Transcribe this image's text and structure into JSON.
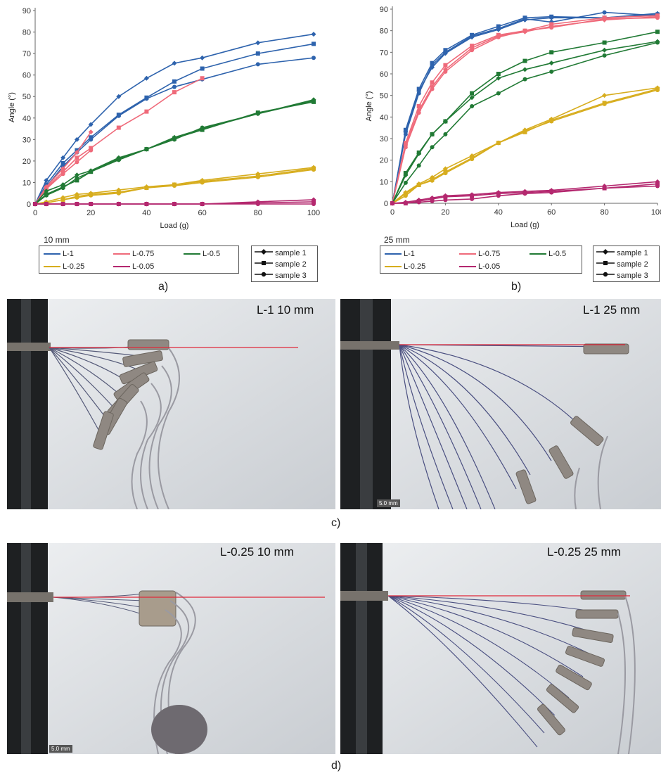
{
  "colors": {
    "L-1": "#2e63ad",
    "L-0.75": "#ef6a7a",
    "L-0.5": "#217a35",
    "L-0.25": "#d7ad1e",
    "L-0.05": "#b4286f",
    "target_line": "#e0283a"
  },
  "legend": {
    "series": [
      "L-1",
      "L-0.75",
      "L-0.5",
      "L-0.25",
      "L-0.05"
    ],
    "markers": [
      {
        "label": "sample 1",
        "marker": "diamond"
      },
      {
        "label": "sample 2",
        "marker": "square"
      },
      {
        "label": "sample 3",
        "marker": "circle"
      }
    ]
  },
  "chart_data": [
    {
      "type": "line",
      "panel": "a)",
      "note": "10 mm",
      "xlabel": "Load (g)",
      "ylabel": "Angle (°)",
      "xlim": [
        0,
        100
      ],
      "ylim": [
        0,
        90
      ],
      "xticks": [
        0,
        20,
        40,
        60,
        80,
        100
      ],
      "yticks": [
        0,
        10,
        20,
        30,
        40,
        50,
        60,
        70,
        80,
        90
      ],
      "grid": false,
      "series": [
        {
          "name": "L-1",
          "sample": "sample 1",
          "marker": "diamond",
          "color": "L-1",
          "x": [
            0,
            4,
            10,
            15,
            20,
            30,
            40,
            50,
            60,
            80,
            100
          ],
          "y": [
            0,
            11,
            21.5,
            30,
            37,
            50,
            58.5,
            65.5,
            68,
            75,
            79
          ]
        },
        {
          "name": "L-1",
          "sample": "sample 2",
          "marker": "square",
          "color": "L-1",
          "x": [
            0,
            4,
            10,
            15,
            20,
            30,
            40,
            50,
            60,
            80,
            100
          ],
          "y": [
            0,
            9,
            19,
            25,
            31,
            41.5,
            49.5,
            57,
            63,
            70,
            74.5
          ]
        },
        {
          "name": "L-1",
          "sample": "sample 3",
          "marker": "circle",
          "color": "L-1",
          "x": [
            0,
            4,
            10,
            15,
            20,
            30,
            40,
            50,
            60,
            80,
            100
          ],
          "y": [
            0,
            8,
            17.5,
            24,
            30,
            41,
            49,
            54.5,
            58,
            65,
            68
          ]
        },
        {
          "name": "L-0.75",
          "sample": "sample 1",
          "marker": "diamond",
          "color": "L-0.75",
          "x": [
            0,
            4,
            10,
            15,
            20
          ],
          "y": [
            0,
            8,
            16.5,
            24,
            33.5
          ]
        },
        {
          "name": "L-0.75",
          "sample": "sample 2",
          "marker": "square",
          "color": "L-0.75",
          "x": [
            0,
            4,
            10,
            15,
            20,
            30,
            40,
            50,
            60
          ],
          "y": [
            0,
            7.5,
            15,
            21.5,
            26,
            35.5,
            43,
            52,
            58.5
          ]
        },
        {
          "name": "L-0.75",
          "sample": "sample 3",
          "marker": "circle",
          "color": "L-0.75",
          "x": [
            0,
            4,
            10,
            15,
            20
          ],
          "y": [
            0,
            7,
            14,
            19.5,
            25
          ]
        },
        {
          "name": "L-0.5",
          "sample": "sample 1",
          "marker": "diamond",
          "color": "L-0.5",
          "x": [
            0,
            4,
            10,
            15,
            20,
            30,
            40,
            50,
            60,
            80,
            100
          ],
          "y": [
            0,
            6,
            9,
            13.5,
            15.5,
            21.5,
            25.5,
            31,
            35,
            42,
            48.5
          ]
        },
        {
          "name": "L-0.5",
          "sample": "sample 2",
          "marker": "square",
          "color": "L-0.5",
          "x": [
            0,
            4,
            10,
            15,
            20,
            30,
            40,
            50,
            60,
            80,
            100
          ],
          "y": [
            0,
            4.5,
            8,
            11,
            15,
            21,
            25.5,
            30.5,
            34.5,
            42.5,
            47.5
          ]
        },
        {
          "name": "L-0.5",
          "sample": "sample 3",
          "marker": "circle",
          "color": "L-0.5",
          "x": [
            0,
            4,
            10,
            15,
            20,
            30,
            40,
            50,
            60,
            80,
            100
          ],
          "y": [
            0,
            4,
            7.5,
            12,
            15,
            20.5,
            25.5,
            30,
            35.5,
            42,
            48
          ]
        },
        {
          "name": "L-0.25",
          "sample": "sample 1",
          "marker": "diamond",
          "color": "L-0.25",
          "x": [
            0,
            4,
            10,
            15,
            20,
            30,
            40,
            50,
            60,
            80,
            100
          ],
          "y": [
            0,
            1,
            3,
            4.5,
            5,
            6.5,
            8,
            9,
            11,
            14,
            17
          ]
        },
        {
          "name": "L-0.25",
          "sample": "sample 2",
          "marker": "square",
          "color": "L-0.25",
          "x": [
            0,
            4,
            10,
            15,
            20,
            30,
            40,
            50,
            60,
            80,
            100
          ],
          "y": [
            0,
            0.5,
            2,
            3.5,
            4.5,
            5.5,
            7.5,
            9,
            10.5,
            13,
            16.5
          ]
        },
        {
          "name": "L-0.25",
          "sample": "sample 3",
          "marker": "circle",
          "color": "L-0.25",
          "x": [
            0,
            4,
            10,
            15,
            20,
            30,
            40,
            50,
            60,
            80,
            100
          ],
          "y": [
            0,
            0.5,
            2,
            3,
            4,
            5,
            7.5,
            8.5,
            10,
            12.5,
            16
          ]
        },
        {
          "name": "L-0.05",
          "sample": "sample 1",
          "marker": "diamond",
          "color": "L-0.05",
          "x": [
            0,
            4,
            10,
            15,
            20,
            30,
            40,
            50,
            60,
            80,
            100
          ],
          "y": [
            0,
            0,
            0,
            0,
            0,
            0,
            0,
            0,
            0,
            1,
            2
          ]
        },
        {
          "name": "L-0.05",
          "sample": "sample 2",
          "marker": "square",
          "color": "L-0.05",
          "x": [
            0,
            4,
            10,
            15,
            20,
            30,
            40,
            50,
            60,
            80,
            100
          ],
          "y": [
            0,
            0,
            0,
            0,
            0,
            0,
            0,
            0,
            0,
            0.5,
            1
          ]
        },
        {
          "name": "L-0.05",
          "sample": "sample 3",
          "marker": "circle",
          "color": "L-0.05",
          "x": [
            0,
            4,
            10,
            15,
            20,
            30,
            40,
            50,
            60,
            80,
            100
          ],
          "y": [
            0,
            0,
            0,
            0,
            0,
            0,
            0,
            0,
            0,
            0,
            0
          ]
        }
      ]
    },
    {
      "type": "line",
      "panel": "b)",
      "note": "25 mm",
      "xlabel": "Load (g)",
      "ylabel": "Angle (°)",
      "xlim": [
        0,
        100
      ],
      "ylim": [
        0,
        90
      ],
      "xticks": [
        0,
        20,
        40,
        60,
        80,
        100
      ],
      "yticks": [
        0,
        10,
        20,
        30,
        40,
        50,
        60,
        70,
        80,
        90
      ],
      "grid": false,
      "series": [
        {
          "name": "L-1",
          "sample": "sample 1",
          "marker": "diamond",
          "color": "L-1",
          "x": [
            0,
            5,
            10,
            15,
            20,
            30,
            40,
            50,
            60,
            80,
            100
          ],
          "y": [
            0,
            33,
            52,
            63,
            69.5,
            77,
            80.5,
            85,
            86,
            86,
            88
          ]
        },
        {
          "name": "L-1",
          "sample": "sample 2",
          "marker": "square",
          "color": "L-1",
          "x": [
            0,
            5,
            10,
            15,
            20,
            30,
            40,
            50,
            60,
            80,
            100
          ],
          "y": [
            0,
            34,
            53,
            65,
            71,
            78,
            82,
            86,
            86.5,
            86,
            87.5
          ]
        },
        {
          "name": "L-1",
          "sample": "sample 3",
          "marker": "circle",
          "color": "L-1",
          "x": [
            0,
            5,
            10,
            15,
            20,
            30,
            40,
            50,
            60,
            80,
            100
          ],
          "y": [
            0,
            32,
            51,
            64,
            70,
            77.5,
            81,
            85.5,
            84,
            88.5,
            87
          ]
        },
        {
          "name": "L-0.75",
          "sample": "sample 1",
          "marker": "diamond",
          "color": "L-0.75",
          "x": [
            0,
            5,
            10,
            15,
            20,
            30,
            40,
            50,
            60,
            80,
            100
          ],
          "y": [
            0,
            27,
            43,
            54,
            62,
            72,
            77.5,
            79.5,
            82,
            85,
            86.5
          ]
        },
        {
          "name": "L-0.75",
          "sample": "sample 2",
          "marker": "square",
          "color": "L-0.75",
          "x": [
            0,
            5,
            10,
            15,
            20,
            30,
            40,
            50,
            60,
            80,
            100
          ],
          "y": [
            0,
            28,
            45,
            56,
            64,
            73,
            78,
            80,
            83,
            86,
            87
          ]
        },
        {
          "name": "L-0.75",
          "sample": "sample 3",
          "marker": "circle",
          "color": "L-0.75",
          "x": [
            0,
            5,
            10,
            15,
            20,
            30,
            40,
            50,
            60,
            80,
            100
          ],
          "y": [
            0,
            26,
            42,
            53,
            61,
            71,
            77,
            80,
            81.5,
            85.5,
            86
          ]
        },
        {
          "name": "L-0.5",
          "sample": "sample 1",
          "marker": "diamond",
          "color": "L-0.5",
          "x": [
            0,
            5,
            10,
            15,
            20,
            30,
            40,
            50,
            60,
            80,
            100
          ],
          "y": [
            0,
            13,
            23,
            32,
            38,
            49,
            58,
            62,
            65,
            71,
            75
          ]
        },
        {
          "name": "L-0.5",
          "sample": "sample 2",
          "marker": "square",
          "color": "L-0.5",
          "x": [
            0,
            5,
            10,
            15,
            20,
            30,
            40,
            50,
            60,
            80,
            100
          ],
          "y": [
            0,
            14,
            23.5,
            32,
            38,
            51,
            60,
            66,
            70,
            74.5,
            79.5
          ]
        },
        {
          "name": "L-0.5",
          "sample": "sample 3",
          "marker": "circle",
          "color": "L-0.5",
          "x": [
            0,
            5,
            10,
            15,
            20,
            30,
            40,
            50,
            60,
            80,
            100
          ],
          "y": [
            0,
            9.5,
            17.5,
            26,
            32,
            45,
            51,
            57.5,
            61,
            68.5,
            74.5
          ]
        },
        {
          "name": "L-0.25",
          "sample": "sample 1",
          "marker": "diamond",
          "color": "L-0.25",
          "x": [
            0,
            5,
            10,
            15,
            20,
            30,
            40,
            50,
            60,
            80,
            100
          ],
          "y": [
            0,
            5,
            9,
            12,
            16,
            22,
            28,
            34,
            39,
            50,
            53.5
          ]
        },
        {
          "name": "L-0.25",
          "sample": "sample 2",
          "marker": "square",
          "color": "L-0.25",
          "x": [
            0,
            5,
            10,
            15,
            20,
            30,
            40,
            50,
            60,
            80,
            100
          ],
          "y": [
            0,
            4.5,
            8.5,
            11,
            14.5,
            21,
            28,
            33,
            38.5,
            46.5,
            53
          ]
        },
        {
          "name": "L-0.25",
          "sample": "sample 3",
          "marker": "circle",
          "color": "L-0.25",
          "x": [
            0,
            5,
            10,
            15,
            20,
            30,
            40,
            50,
            60,
            80,
            100
          ],
          "y": [
            0,
            3.5,
            8.5,
            10.5,
            14,
            20.5,
            28,
            33.5,
            38,
            46,
            52.5
          ]
        },
        {
          "name": "L-0.05",
          "sample": "sample 1",
          "marker": "diamond",
          "color": "L-0.05",
          "x": [
            0,
            5,
            10,
            15,
            20,
            30,
            40,
            50,
            60,
            80,
            100
          ],
          "y": [
            0,
            0.5,
            1.5,
            2.5,
            3.5,
            4,
            5,
            5.5,
            6,
            8,
            10
          ]
        },
        {
          "name": "L-0.05",
          "sample": "sample 2",
          "marker": "square",
          "color": "L-0.05",
          "x": [
            0,
            5,
            10,
            15,
            20,
            30,
            40,
            50,
            60,
            80,
            100
          ],
          "y": [
            0,
            0,
            1,
            2,
            3,
            3.5,
            4.5,
            5,
            5.5,
            7,
            9
          ]
        },
        {
          "name": "L-0.05",
          "sample": "sample 3",
          "marker": "circle",
          "color": "L-0.05",
          "x": [
            0,
            5,
            10,
            15,
            20,
            30,
            40,
            50,
            60,
            80,
            100
          ],
          "y": [
            0,
            0,
            0.5,
            1,
            1.5,
            2,
            3.5,
            4.5,
            5,
            7,
            8
          ]
        }
      ]
    }
  ],
  "photos": {
    "c": {
      "panel_label": "c)",
      "left_title": "L-1 10 mm",
      "right_title": "L-1 25 mm",
      "right_scalebar": "5.0 mm"
    },
    "d": {
      "panel_label": "d)",
      "left_title": "L-0.25 10 mm",
      "right_title": "L-0.25 25 mm",
      "left_scalebar": "5.0 mm"
    }
  }
}
